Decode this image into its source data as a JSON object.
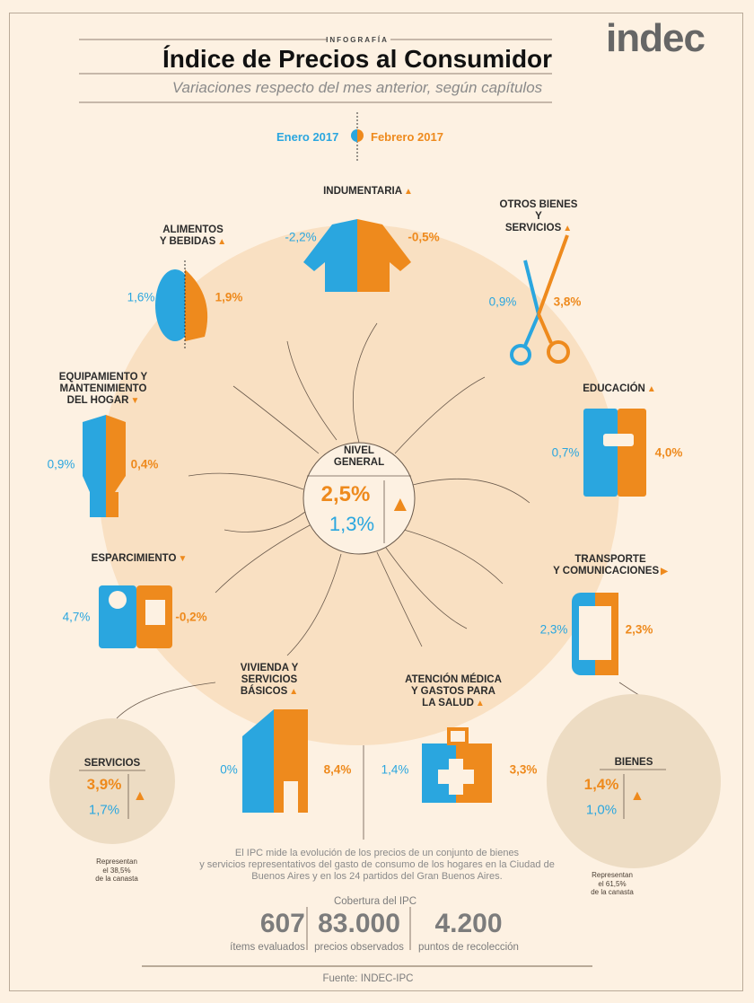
{
  "header": {
    "kicker": "INFOGRAFÍA",
    "title": "Índice de Precios al Consumidor",
    "subtitle": "Variaciones respecto del mes anterior, según capítulos",
    "logo": "indec"
  },
  "legend": {
    "jan": "Enero 2017",
    "feb": "Febrero 2017"
  },
  "colors": {
    "jan": "#2aa6df",
    "feb": "#ee8a1d",
    "background": "#fdf1e2",
    "circle": "#f9e0c2"
  },
  "categories": [
    {
      "label": "INDUMENTARIA",
      "jan": "-2,2%",
      "feb": "-0,5%",
      "trend": "up",
      "icon": "jacket-icon"
    },
    {
      "label": "OTROS BIENES Y SERVICIOS",
      "jan": "0,9%",
      "feb": "3,8%",
      "trend": "up",
      "icon": "scissors-icon"
    },
    {
      "label": "EDUCACIÓN",
      "jan": "0,7%",
      "feb": "4,0%",
      "trend": "up",
      "icon": "notebook-icon"
    },
    {
      "label": "TRANSPORTE Y COMUNICACIONES",
      "jan": "2,3%",
      "feb": "2,3%",
      "trend": "flat",
      "icon": "phone-icon"
    },
    {
      "label": "ATENCIÓN MÉDICA Y GASTOS PARA LA SALUD",
      "jan": "1,4%",
      "feb": "3,3%",
      "trend": "up",
      "icon": "first-aid-kit-icon"
    },
    {
      "label": "VIVIENDA Y SERVICIOS BÁSICOS",
      "jan": "0%",
      "feb": "8,4%",
      "trend": "up",
      "icon": "building-icon"
    },
    {
      "label": "ESPARCIMIENTO",
      "jan": "4,7%",
      "feb": "-0,2%",
      "trend": "down",
      "icon": "camera-icon"
    },
    {
      "label": "EQUIPAMIENTO Y MANTENIMIENTO DEL HOGAR",
      "jan": "0,9%",
      "feb": "0,4%",
      "trend": "down",
      "icon": "lightbulb-icon"
    },
    {
      "label": "ALIMENTOS Y BEBIDAS",
      "jan": "1,6%",
      "feb": "1,9%",
      "trend": "up",
      "icon": "chicken-icon"
    }
  ],
  "general": {
    "label1": "NIVEL",
    "label2": "GENERAL",
    "feb": "2,5%",
    "jan": "1,3%",
    "trend": "up"
  },
  "servicios": {
    "label": "SERVICIOS",
    "feb": "3,9%",
    "jan": "1,7%",
    "trend": "up",
    "note1": "Representan",
    "note2": "el 38,5%",
    "note3": "de la canasta"
  },
  "bienes": {
    "label": "BIENES",
    "feb": "1,4%",
    "jan": "1,0%",
    "trend": "up",
    "note1": "Representan",
    "note2": "el 61,5%",
    "note3": "de la canasta"
  },
  "description": [
    "El IPC mide la evolución de los precios de un conjunto de bienes",
    "y servicios representativos del gasto de consumo de los hogares en la Ciudad de",
    "Buenos Aires y en los 24 partidos del Gran Buenos Aires."
  ],
  "coverage": {
    "title": "Cobertura del IPC",
    "stats": [
      {
        "value": "607",
        "label": "ítems evaluados"
      },
      {
        "value": "83.000",
        "label": "precios observados"
      },
      {
        "value": "4.200",
        "label": "puntos de recolección"
      }
    ]
  },
  "source": "Fuente: INDEC-IPC"
}
